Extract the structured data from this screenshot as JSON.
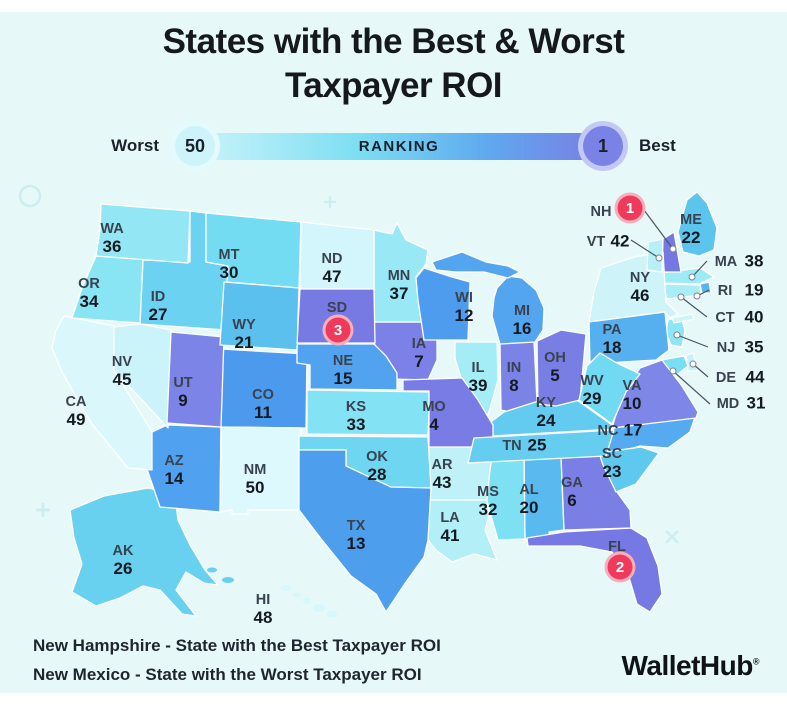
{
  "title": {
    "line1": "States with the Best & Worst",
    "line2": "Taxpayer ROI"
  },
  "legend": {
    "worst_label": "Worst",
    "worst_value": "50",
    "bar_label": "RANKING",
    "best_value": "1",
    "best_label": "Best",
    "colors": {
      "worst_end": "#c9f3fa",
      "mid": "#5fa9ef",
      "best_end": "#7a7fe4"
    }
  },
  "map": {
    "badge_color": "#ef3a5c",
    "badge_ring_color": "#f7aebd",
    "badges": [
      {
        "state": "NH",
        "rank": 1
      },
      {
        "state": "FL",
        "rank": 2
      },
      {
        "state": "SD",
        "rank": 3
      }
    ],
    "states": [
      {
        "code": "AK",
        "rank": 26
      },
      {
        "code": "AL",
        "rank": 20
      },
      {
        "code": "AR",
        "rank": 43
      },
      {
        "code": "AZ",
        "rank": 14
      },
      {
        "code": "CA",
        "rank": 49
      },
      {
        "code": "CO",
        "rank": 11
      },
      {
        "code": "CT",
        "rank": 40
      },
      {
        "code": "DE",
        "rank": 44
      },
      {
        "code": "FL",
        "rank": 2
      },
      {
        "code": "GA",
        "rank": 6
      },
      {
        "code": "HI",
        "rank": 48
      },
      {
        "code": "IA",
        "rank": 7
      },
      {
        "code": "ID",
        "rank": 27
      },
      {
        "code": "IL",
        "rank": 39
      },
      {
        "code": "IN",
        "rank": 8
      },
      {
        "code": "KS",
        "rank": 33
      },
      {
        "code": "KY",
        "rank": 24
      },
      {
        "code": "LA",
        "rank": 41
      },
      {
        "code": "MA",
        "rank": 38
      },
      {
        "code": "MD",
        "rank": 31
      },
      {
        "code": "ME",
        "rank": 22
      },
      {
        "code": "MI",
        "rank": 16
      },
      {
        "code": "MN",
        "rank": 37
      },
      {
        "code": "MO",
        "rank": 4
      },
      {
        "code": "MS",
        "rank": 32
      },
      {
        "code": "MT",
        "rank": 30
      },
      {
        "code": "NC",
        "rank": 17
      },
      {
        "code": "ND",
        "rank": 47
      },
      {
        "code": "NE",
        "rank": 15
      },
      {
        "code": "NH",
        "rank": 1
      },
      {
        "code": "NJ",
        "rank": 35
      },
      {
        "code": "NM",
        "rank": 50
      },
      {
        "code": "NV",
        "rank": 45
      },
      {
        "code": "NY",
        "rank": 46
      },
      {
        "code": "OH",
        "rank": 5
      },
      {
        "code": "OK",
        "rank": 28
      },
      {
        "code": "OR",
        "rank": 34
      },
      {
        "code": "PA",
        "rank": 18
      },
      {
        "code": "RI",
        "rank": 19
      },
      {
        "code": "SC",
        "rank": 23
      },
      {
        "code": "SD",
        "rank": 3
      },
      {
        "code": "TN",
        "rank": 25
      },
      {
        "code": "TX",
        "rank": 13
      },
      {
        "code": "UT",
        "rank": 9
      },
      {
        "code": "VA",
        "rank": 10
      },
      {
        "code": "VT",
        "rank": 42
      },
      {
        "code": "WA",
        "rank": 36
      },
      {
        "code": "WI",
        "rank": 12
      },
      {
        "code": "WV",
        "rank": 29
      },
      {
        "code": "WY",
        "rank": 21
      }
    ]
  },
  "footer": {
    "best_note": "New Hampshire - State with the Best Taxpayer ROI",
    "worst_note": "New Mexico - State with the Worst Taxpayer ROI",
    "brand": "WalletHub",
    "brand_mark": "®"
  },
  "chart_data": {
    "type": "heatmap",
    "title": "States with the Best & Worst Taxpayer ROI",
    "legend": {
      "label": "RANKING",
      "worst": 50,
      "best": 1,
      "position": "top"
    },
    "range": [
      1,
      50
    ],
    "categories": [
      "AK",
      "AL",
      "AR",
      "AZ",
      "CA",
      "CO",
      "CT",
      "DE",
      "FL",
      "GA",
      "HI",
      "IA",
      "ID",
      "IL",
      "IN",
      "KS",
      "KY",
      "LA",
      "MA",
      "MD",
      "ME",
      "MI",
      "MN",
      "MO",
      "MS",
      "MT",
      "NC",
      "ND",
      "NE",
      "NH",
      "NJ",
      "NM",
      "NV",
      "NY",
      "OH",
      "OK",
      "OR",
      "PA",
      "RI",
      "SC",
      "SD",
      "TN",
      "TX",
      "UT",
      "VA",
      "VT",
      "WA",
      "WI",
      "WV",
      "WY"
    ],
    "values": [
      26,
      20,
      43,
      14,
      49,
      11,
      40,
      44,
      2,
      6,
      48,
      7,
      27,
      39,
      8,
      33,
      24,
      41,
      38,
      31,
      22,
      16,
      37,
      4,
      32,
      30,
      17,
      47,
      15,
      1,
      35,
      50,
      45,
      46,
      5,
      28,
      34,
      18,
      19,
      23,
      3,
      25,
      13,
      9,
      10,
      42,
      36,
      12,
      29,
      21
    ],
    "highlights": [
      {
        "state": "NH",
        "rank": 1,
        "note": "Best"
      },
      {
        "state": "FL",
        "rank": 2
      },
      {
        "state": "SD",
        "rank": 3
      },
      {
        "state": "NM",
        "rank": 50,
        "note": "Worst"
      }
    ],
    "annotations": [
      "New Hampshire - State with the Best Taxpayer ROI",
      "New Mexico - State with the Worst Taxpayer ROI"
    ]
  }
}
